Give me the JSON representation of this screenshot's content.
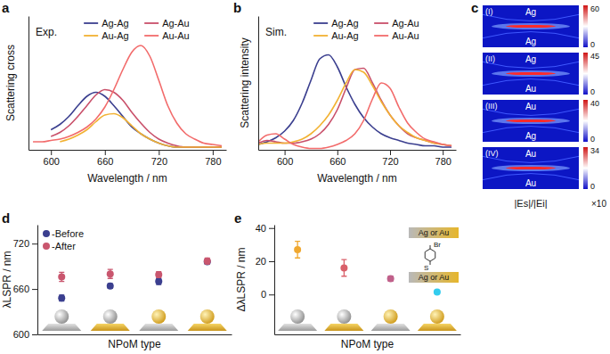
{
  "chart_data": [
    {
      "type": "line",
      "title": "a",
      "annotation": "Exp.",
      "xlabel": "Wavelength / nm",
      "ylabel": "Scattering cross",
      "x": [
        580,
        590,
        600,
        610,
        620,
        630,
        640,
        650,
        660,
        670,
        680,
        690,
        700,
        710,
        720,
        730,
        740,
        750,
        760,
        770,
        780,
        790
      ],
      "series": [
        {
          "name": "Ag-Ag",
          "color": "#3b3f8f",
          "values": [
            null,
            null,
            0.15,
            0.19,
            0.25,
            0.33,
            0.4,
            0.43,
            0.4,
            0.33,
            0.25,
            0.17,
            0.12,
            0.08,
            0.05,
            0.03,
            0.02,
            0.02,
            0.02,
            0.02,
            0.02,
            0.02
          ]
        },
        {
          "name": "Ag-Au",
          "color": "#c9506a",
          "values": [
            null,
            null,
            0.1,
            0.13,
            0.18,
            0.25,
            0.33,
            0.41,
            0.45,
            0.43,
            0.37,
            0.28,
            0.2,
            0.13,
            0.08,
            0.05,
            0.03,
            0.02,
            0.02,
            0.02,
            0.02,
            0.02
          ]
        },
        {
          "name": "Au-Ag",
          "color": "#f2b233",
          "values": [
            null,
            null,
            null,
            0.06,
            0.08,
            0.11,
            0.15,
            0.21,
            0.26,
            0.27,
            0.24,
            0.18,
            0.12,
            0.08,
            0.05,
            0.03,
            0.02,
            0.02,
            0.02,
            0.02,
            0.02,
            0.02
          ]
        },
        {
          "name": "Au-Au",
          "color": "#f26b6b",
          "values": [
            0.06,
            0.06,
            0.07,
            0.08,
            0.1,
            0.13,
            0.17,
            0.23,
            0.32,
            0.45,
            0.6,
            0.73,
            0.78,
            0.7,
            0.52,
            0.33,
            0.2,
            0.12,
            0.08,
            0.05,
            0.04,
            0.03
          ]
        }
      ],
      "xlim": [
        575,
        795
      ],
      "xticks": [
        600,
        660,
        720,
        780
      ],
      "ylim": [
        0,
        1
      ],
      "tick_labels": "x",
      "legend": "top",
      "grid": false
    },
    {
      "type": "line",
      "title": "b",
      "annotation": "Sim.",
      "xlabel": "Wavelength / nm",
      "ylabel": "Scattering intensity",
      "x": [
        570,
        580,
        590,
        600,
        610,
        620,
        630,
        640,
        650,
        660,
        670,
        680,
        690,
        700,
        710,
        720,
        730,
        740,
        750,
        760,
        770,
        780,
        790
      ],
      "series": [
        {
          "name": "Ag-Ag",
          "color": "#3b3f8f",
          "values": [
            0.04,
            0.06,
            0.09,
            0.14,
            0.22,
            0.35,
            0.52,
            0.68,
            0.71,
            0.62,
            0.47,
            0.34,
            0.24,
            0.17,
            0.12,
            0.09,
            0.07,
            0.05,
            0.04,
            0.03,
            0.03,
            0.02,
            0.02
          ]
        },
        {
          "name": "Ag-Au",
          "color": "#c9506a",
          "values": [
            0.05,
            0.07,
            0.06,
            0.05,
            0.05,
            0.06,
            0.08,
            0.12,
            0.19,
            0.3,
            0.46,
            0.6,
            0.61,
            0.5,
            0.37,
            0.26,
            0.18,
            0.12,
            0.09,
            0.07,
            0.05,
            0.04,
            0.03
          ]
        },
        {
          "name": "Au-Ag",
          "color": "#f2b233",
          "values": [
            0.04,
            0.05,
            0.05,
            0.05,
            0.06,
            0.08,
            0.12,
            0.18,
            0.26,
            0.37,
            0.5,
            0.6,
            0.58,
            0.48,
            0.36,
            0.26,
            0.18,
            0.13,
            0.09,
            0.07,
            0.05,
            0.04,
            0.03
          ]
        },
        {
          "name": "Au-Au",
          "color": "#f26b6b",
          "values": [
            0.06,
            0.11,
            0.12,
            0.08,
            0.04,
            0.02,
            0.01,
            0.01,
            0.02,
            0.04,
            0.07,
            0.12,
            0.22,
            0.38,
            0.5,
            0.46,
            0.32,
            0.2,
            0.13,
            0.08,
            0.06,
            0.04,
            0.03
          ]
        }
      ],
      "xlim": [
        570,
        795
      ],
      "xticks": [
        600,
        660,
        720,
        780
      ],
      "ylim": [
        0,
        1
      ],
      "tick_labels": "x",
      "legend": "top",
      "grid": false
    },
    {
      "type": "fieldmap",
      "title": "c",
      "colorbar_label": "|Es|/|Ei|",
      "colorbar_unit": "×10",
      "panels": [
        {
          "label": "(I)",
          "top": "Ag",
          "bottom": "Ag",
          "colorbar_range": [
            0,
            60
          ],
          "colorbar_ticks": [
            0,
            60
          ]
        },
        {
          "label": "(II)",
          "top": "Ag",
          "bottom": "Au",
          "colorbar_range": [
            0,
            45
          ],
          "colorbar_ticks": [
            0,
            45
          ]
        },
        {
          "label": "(III)",
          "top": "Au",
          "bottom": "Ag",
          "colorbar_range": [
            0,
            40
          ],
          "colorbar_ticks": [
            0,
            40
          ]
        },
        {
          "label": "(IV)",
          "top": "Au",
          "bottom": "Au",
          "colorbar_range": [
            0,
            34
          ],
          "colorbar_ticks": [
            0,
            34
          ]
        }
      ]
    },
    {
      "type": "scatter",
      "title": "d",
      "xlabel": "NPoM type",
      "ylabel": "λLSPR / nm",
      "categories": [
        null,
        null,
        null,
        null
      ],
      "series": [
        {
          "name": "-Before",
          "color": "#3b3f8f",
          "values": [
            648,
            664,
            670,
            696
          ],
          "errors": [
            4,
            3,
            4,
            3
          ]
        },
        {
          "name": "-After",
          "color": "#c9566e",
          "values": [
            676,
            680,
            679,
            697
          ],
          "errors": [
            6,
            6,
            4,
            4
          ]
        }
      ],
      "ylim": [
        600,
        745
      ],
      "yticks": [
        600,
        660,
        720
      ],
      "legend": "top-left",
      "marker": "circle",
      "grid": false
    },
    {
      "type": "scatter",
      "title": "e",
      "xlabel": "NPoM type",
      "ylabel": "ΔλLSPR / nm",
      "categories": [
        null,
        null,
        null,
        null
      ],
      "series": [
        {
          "values": [
            27,
            16,
            9.5,
            1.5
          ],
          "errors": [
            5,
            5,
            1.5,
            0.8
          ]
        }
      ],
      "colors": [
        "#f0a830",
        "#d9606a",
        "#c0608a",
        "#33ccee"
      ],
      "ylim": [
        -24,
        42
      ],
      "yticks": [
        0,
        20,
        40
      ],
      "marker": "circle",
      "grid": false,
      "inset": {
        "top": "Ag or Au",
        "bottom": "Ag or Au",
        "atoms": [
          "Br",
          "S"
        ]
      }
    }
  ]
}
